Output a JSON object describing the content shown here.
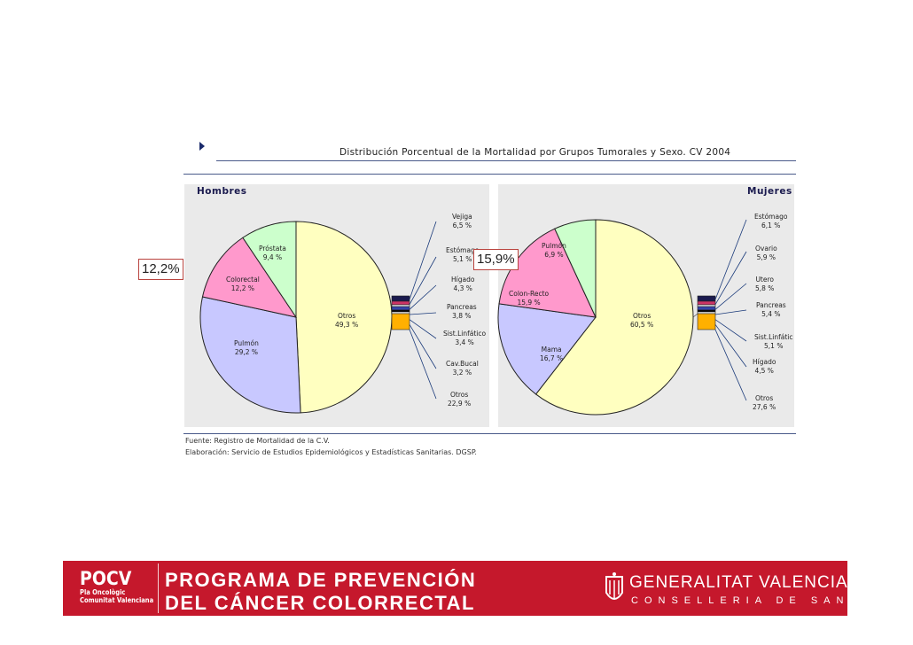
{
  "header": {
    "title": "Distribución Porcentual de la Mortalidad por Grupos Tumorales y Sexo. CV 2004"
  },
  "chart_data": [
    {
      "type": "pie",
      "title": "Hombres",
      "slices": [
        {
          "label": "Otros",
          "value_label": "49,3 %",
          "value": 49.3,
          "color": "#ffffc0"
        },
        {
          "label": "Pulmón",
          "value_label": "29,2 %",
          "value": 29.2,
          "color": "#c8c8ff"
        },
        {
          "label": "Colorectal",
          "value_label": "12,2 %",
          "value": 12.2,
          "color": "#ff99cc"
        },
        {
          "label": "Próstata",
          "value_label": "9,4 %",
          "value": 9.4,
          "color": "#ccffcc"
        }
      ],
      "breakdown": [
        {
          "label": "Vejiga",
          "value_label": "6,5 %"
        },
        {
          "label": "Estómago",
          "value_label": "5,1 %"
        },
        {
          "label": "Hígado",
          "value_label": "4,3 %"
        },
        {
          "label": "Pancreas",
          "value_label": "3,8 %"
        },
        {
          "label": "Sist.Linfático",
          "value_label": "3,4 %"
        },
        {
          "label": "Cav.Bucal",
          "value_label": "3,2 %"
        },
        {
          "label": "Otros",
          "value_label": "22,9 %"
        }
      ],
      "callout": "12,2%"
    },
    {
      "type": "pie",
      "title": "Mujeres",
      "slices": [
        {
          "label": "Otros",
          "value_label": "60,5 %",
          "value": 60.5,
          "color": "#ffffc0"
        },
        {
          "label": "Mama",
          "value_label": "16,7 %",
          "value": 16.7,
          "color": "#c8c8ff"
        },
        {
          "label": "Colon-Recto",
          "value_label": "15,9 %",
          "value": 15.9,
          "color": "#ff99cc"
        },
        {
          "label": "Pulmón",
          "value_label": "6,9 %",
          "value": 6.9,
          "color": "#ccffcc"
        }
      ],
      "breakdown": [
        {
          "label": "Estómago",
          "value_label": "6,1 %"
        },
        {
          "label": "Ovario",
          "value_label": "5,9 %"
        },
        {
          "label": "Utero",
          "value_label": "5,8 %"
        },
        {
          "label": "Pancreas",
          "value_label": "5,4 %"
        },
        {
          "label": "Sist.Linfátic",
          "value_label": "5,1 %"
        },
        {
          "label": "Hígado",
          "value_label": "4,5 %"
        },
        {
          "label": "Otros",
          "value_label": "27,6 %"
        }
      ],
      "callout": "15,9%"
    }
  ],
  "source": {
    "line1": "Fuente: Registro de Mortalidad de la C.V.",
    "line2": "Elaboración: Servicio de Estudios Epidemiológicos y Estadísticas Sanitarias. DGSP."
  },
  "footer": {
    "logo_main": "POCV",
    "logo_sub1": "Pla Oncològic",
    "logo_sub2": "Comunitat Valenciana",
    "program_line1": "PROGRAMA DE PREVENCIÓN",
    "program_line2": "DEL CÁNCER COLORRECTAL",
    "gv_name": "GENERALITAT VALENCIANA",
    "gv_sub": "CONSELLERIA DE SANITAT",
    "brand_color": "#c5182c"
  },
  "stack_colors": [
    "#1a1a4e",
    "#cc3366",
    "#ffffff",
    "#3344aa",
    "#000000",
    "#ffffff",
    "#ffb000"
  ]
}
